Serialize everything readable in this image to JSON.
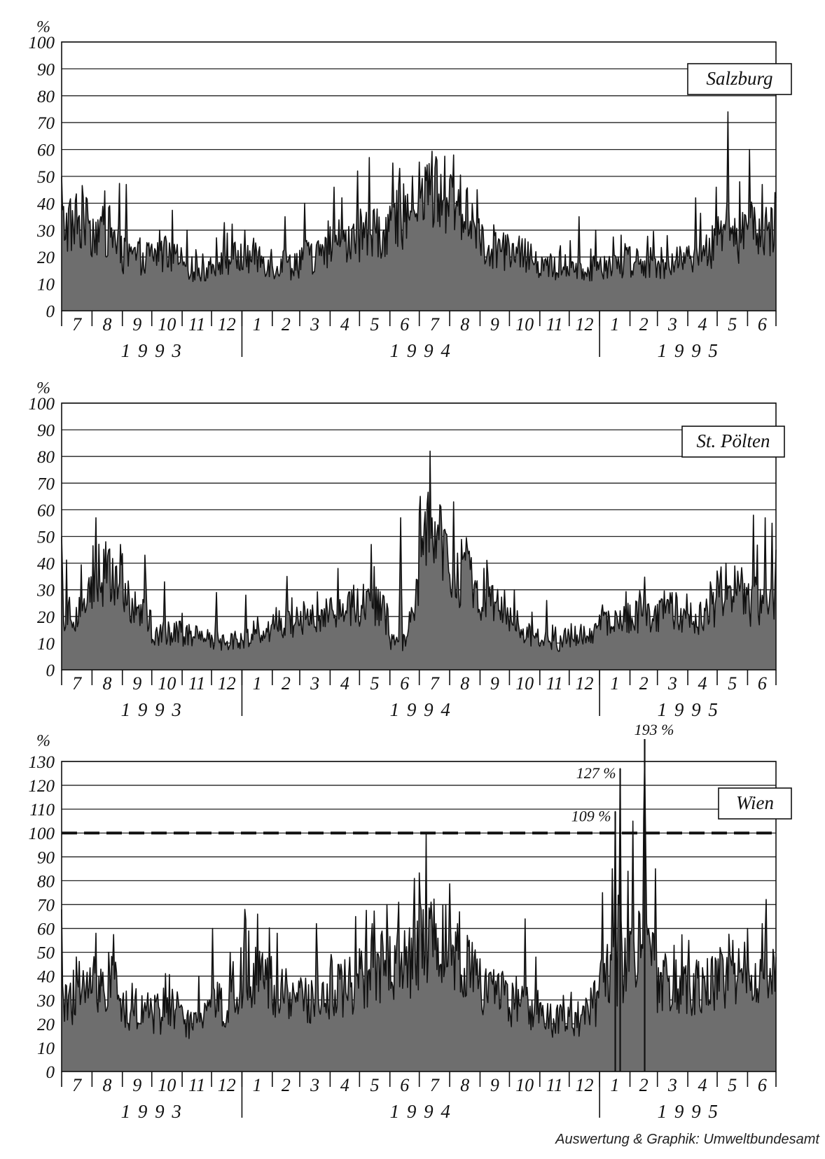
{
  "credit": "Auswertung & Graphik: Umweltbundesamt",
  "colors": {
    "fill": "#6e6e6e",
    "line": "#111111",
    "grid": "#222222"
  },
  "month_labels": [
    "7",
    "8",
    "9",
    "10",
    "11",
    "12",
    "1",
    "2",
    "3",
    "4",
    "5",
    "6",
    "7",
    "8",
    "9",
    "10",
    "11",
    "12",
    "1",
    "2",
    "3",
    "4",
    "5",
    "6"
  ],
  "year_labels": [
    "1 9 9 3",
    "1 9 9 4",
    "1 9 9 5"
  ],
  "chart_data": [
    {
      "type": "area",
      "title": "Salzburg",
      "ylabel": "%",
      "ylim": [
        0,
        100
      ],
      "yticks": [
        0,
        10,
        20,
        30,
        40,
        50,
        60,
        70,
        80,
        90,
        100
      ],
      "period": "1993-07 to 1995-06 (daily)",
      "series": [
        {
          "monthly_base": [
            32,
            30,
            20,
            21,
            15,
            19,
            20,
            17,
            20,
            24,
            28,
            35,
            45,
            38,
            24,
            20,
            16,
            16,
            18,
            19,
            17,
            22,
            26,
            30
          ],
          "peaks": [
            [
              0,
              50
            ],
            [
              8,
              40
            ],
            [
              40,
              35
            ],
            [
              66,
              47
            ],
            [
              100,
              30
            ],
            [
              128,
              30
            ],
            [
              187,
              30
            ],
            [
              228,
              35
            ],
            [
              248,
              40
            ],
            [
              278,
              46
            ],
            [
              302,
              52
            ],
            [
              314,
              57
            ],
            [
              345,
              53
            ],
            [
              380,
              33
            ],
            [
              449,
              22
            ],
            [
              472,
              20
            ],
            [
              490,
              20
            ],
            [
              528,
              35
            ],
            [
              545,
              30
            ],
            [
              575,
              25
            ],
            [
              618,
              28
            ],
            [
              647,
              42
            ],
            [
              668,
              46
            ],
            [
              680,
              74
            ],
            [
              702,
              60
            ],
            [
              715,
              47
            ],
            [
              728,
              44
            ],
            [
              730,
              42
            ]
          ]
        }
      ]
    },
    {
      "type": "area",
      "title": "St. Pölten",
      "ylabel": "%",
      "ylim": [
        0,
        100
      ],
      "yticks": [
        0,
        10,
        20,
        30,
        40,
        50,
        60,
        70,
        80,
        90,
        100
      ],
      "period": "1993-07 to 1995-06 (daily)",
      "series": [
        {
          "monthly_base": [
            22,
            35,
            25,
            14,
            13,
            11,
            12,
            18,
            20,
            24,
            25,
            10,
            50,
            35,
            24,
            14,
            10,
            13,
            17,
            21,
            22,
            20,
            30,
            25
          ],
          "peaks": [
            [
              0,
              50
            ],
            [
              35,
              57
            ],
            [
              45,
              48
            ],
            [
              60,
              47
            ],
            [
              85,
              43
            ],
            [
              105,
              33
            ],
            [
              130,
              17
            ],
            [
              158,
              29
            ],
            [
              188,
              28
            ],
            [
              230,
              35
            ],
            [
              282,
              38
            ],
            [
              316,
              47
            ],
            [
              346,
              57
            ],
            [
              378,
              57
            ],
            [
              400,
              63
            ],
            [
              435,
              36
            ],
            [
              462,
              30
            ],
            [
              495,
              26
            ],
            [
              530,
              17
            ],
            [
              575,
              18
            ],
            [
              617,
              24
            ],
            [
              662,
              33
            ],
            [
              678,
              40
            ],
            [
              690,
              37
            ],
            [
              706,
              58
            ],
            [
              718,
              57
            ],
            [
              725,
              55
            ],
            [
              730,
              45
            ]
          ]
        }
      ]
    },
    {
      "type": "area",
      "title": "Wien",
      "ylabel": "%",
      "ylim": [
        0,
        130
      ],
      "yticks": [
        0,
        10,
        20,
        30,
        40,
        50,
        60,
        70,
        80,
        90,
        100,
        110,
        120,
        130
      ],
      "threshold": 100,
      "period": "1993-07 to 1995-06 (daily)",
      "annotations": [
        {
          "text": "127 %",
          "day": 570,
          "value": 127
        },
        {
          "text": "109 %",
          "day": 565,
          "value": 109
        },
        {
          "text": "193 %",
          "day": 595,
          "value": 193
        }
      ],
      "series": [
        {
          "monthly_base": [
            30,
            38,
            26,
            24,
            20,
            28,
            40,
            32,
            30,
            35,
            40,
            45,
            55,
            45,
            32,
            28,
            22,
            22,
            40,
            50,
            35,
            35,
            40,
            38
          ],
          "peaks": [
            [
              0,
              68
            ],
            [
              35,
              58
            ],
            [
              48,
              50
            ],
            [
              72,
              37
            ],
            [
              88,
              33
            ],
            [
              108,
              31
            ],
            [
              140,
              40
            ],
            [
              154,
              60
            ],
            [
              172,
              50
            ],
            [
              187,
              68
            ],
            [
              200,
              66
            ],
            [
              220,
              58
            ],
            [
              260,
              62
            ],
            [
              285,
              45
            ],
            [
              300,
              65
            ],
            [
              317,
              62
            ],
            [
              332,
              70
            ],
            [
              344,
              71
            ],
            [
              360,
              81
            ],
            [
              392,
              70
            ],
            [
              404,
              62
            ],
            [
              422,
              51
            ],
            [
              450,
              42
            ],
            [
              473,
              64
            ],
            [
              484,
              48
            ],
            [
              510,
              27
            ],
            [
              540,
              35
            ],
            [
              552,
              75
            ],
            [
              562,
              85
            ],
            [
              565,
              109
            ],
            [
              570,
              127
            ],
            [
              578,
              84
            ],
            [
              583,
              105
            ],
            [
              595,
              193
            ],
            [
              606,
              85
            ],
            [
              640,
              55
            ],
            [
              672,
              52
            ],
            [
              685,
              55
            ],
            [
              700,
              60
            ],
            [
              715,
              62
            ],
            [
              730,
              48
            ]
          ]
        }
      ]
    }
  ]
}
